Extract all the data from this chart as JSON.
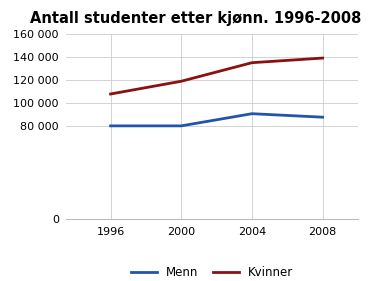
{
  "title": "Antall studenter etter kjønn. 1996-2008",
  "x": [
    1996,
    2000,
    2004,
    2008
  ],
  "menn": [
    80500,
    80500,
    91000,
    88000
  ],
  "kvinner": [
    108000,
    119000,
    135000,
    139000
  ],
  "menn_color": "#2255aa",
  "kvinner_color": "#8b1010",
  "menn_label": "Menn",
  "kvinner_label": "Kvinner",
  "ylim": [
    0,
    160000
  ],
  "yticks": [
    0,
    80000,
    100000,
    120000,
    140000,
    160000
  ],
  "ytick_labels": [
    "0",
    "80 000",
    "100 000",
    "120 000",
    "140 000",
    "160 000"
  ],
  "xticks": [
    1996,
    2000,
    2004,
    2008
  ],
  "background_color": "#ffffff",
  "grid_color": "#cccccc",
  "title_fontsize": 10.5
}
